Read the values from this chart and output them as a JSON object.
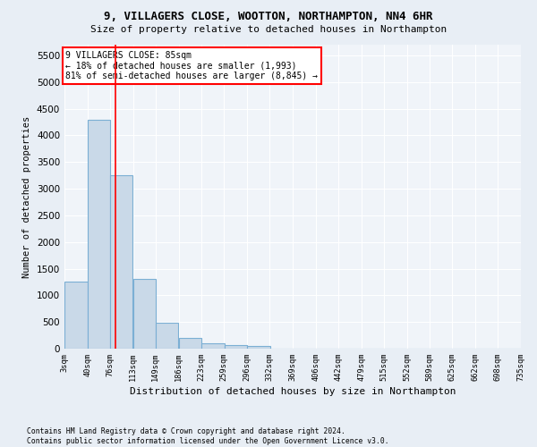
{
  "title1": "9, VILLAGERS CLOSE, WOOTTON, NORTHAMPTON, NN4 6HR",
  "title2": "Size of property relative to detached houses in Northampton",
  "xlabel": "Distribution of detached houses by size in Northampton",
  "ylabel": "Number of detached properties",
  "footnote": "Contains HM Land Registry data © Crown copyright and database right 2024.\nContains public sector information licensed under the Open Government Licence v3.0.",
  "bar_left_edges": [
    3,
    40,
    76,
    113,
    149,
    186,
    223,
    259,
    296,
    332,
    369,
    406,
    442,
    479,
    515,
    552,
    589,
    625,
    662,
    698
  ],
  "bar_heights": [
    1250,
    4300,
    3250,
    1300,
    480,
    200,
    100,
    70,
    55,
    0,
    0,
    0,
    0,
    0,
    0,
    0,
    0,
    0,
    0,
    0
  ],
  "bin_width": 37,
  "bar_color": "#c9d9e8",
  "bar_edge_color": "#7bafd4",
  "tick_labels": [
    "3sqm",
    "40sqm",
    "76sqm",
    "113sqm",
    "149sqm",
    "186sqm",
    "223sqm",
    "259sqm",
    "296sqm",
    "332sqm",
    "369sqm",
    "406sqm",
    "442sqm",
    "479sqm",
    "515sqm",
    "552sqm",
    "589sqm",
    "625sqm",
    "662sqm",
    "698sqm",
    "735sqm"
  ],
  "property_line_x": 85,
  "property_line_color": "red",
  "annotation_text": "9 VILLAGERS CLOSE: 85sqm\n← 18% of detached houses are smaller (1,993)\n81% of semi-detached houses are larger (8,845) →",
  "annotation_box_color": "white",
  "annotation_box_edge": "red",
  "ylim": [
    0,
    5700
  ],
  "yticks": [
    0,
    500,
    1000,
    1500,
    2000,
    2500,
    3000,
    3500,
    4000,
    4500,
    5000,
    5500
  ],
  "bg_color": "#e8eef5",
  "plot_bg_color": "#f0f4f9"
}
